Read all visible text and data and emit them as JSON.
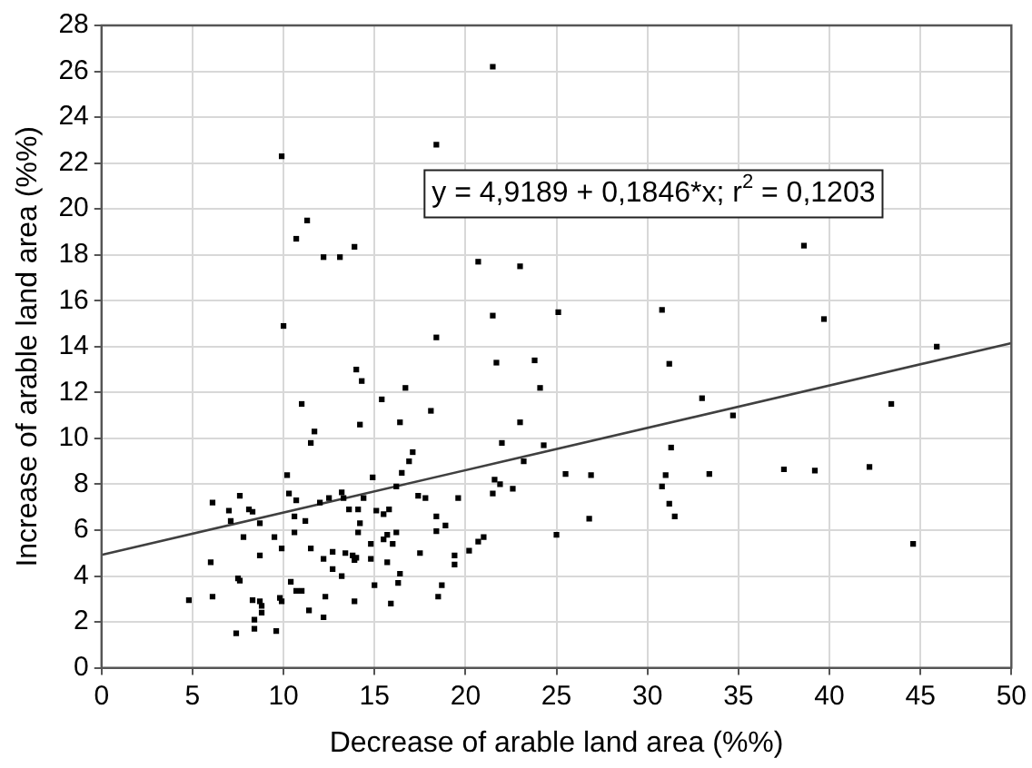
{
  "chart_data": {
    "type": "scatter",
    "xlabel": "Decrease of arable land area (%%)",
    "ylabel": "Increase of arable land area (%%)",
    "annotations": [
      "y = 4,9189 + 0,1846*x; r$^{2}$ = 0,1203"
    ],
    "xlim": [
      0,
      50
    ],
    "xticks": [
      0,
      5,
      10,
      15,
      20,
      25,
      30,
      35,
      40,
      45,
      50
    ],
    "ylim": [
      0,
      28
    ],
    "yticks": [
      0,
      2,
      4,
      6,
      8,
      10,
      12,
      14,
      16,
      18,
      20,
      22,
      24,
      26,
      28
    ],
    "grid": true,
    "marker": "square",
    "series": [
      {
        "color": "#000000",
        "x": [
          21.5,
          9.9,
          18.4,
          11.3,
          10.7,
          12.2,
          13.1,
          13.9,
          20.7,
          23.0,
          10.0,
          18.4,
          21.5,
          25.1,
          30.8,
          38.6,
          39.7,
          45.9,
          31.2,
          33.0,
          34.7,
          43.4,
          24.3,
          31.3,
          25.5,
          26.9,
          31.0,
          30.8,
          33.4,
          37.5,
          39.2,
          42.2,
          31.2,
          31.5,
          26.8,
          25.0,
          44.6,
          14.0,
          14.3,
          16.7,
          11.0,
          15.4,
          21.7,
          23.8,
          24.1,
          18.1,
          11.7,
          11.5,
          14.2,
          16.4,
          23.0,
          22.0,
          17.1,
          16.9,
          16.5,
          23.2,
          14.9,
          10.2,
          16.2,
          21.6,
          21.9,
          22.6,
          21.5,
          6.1,
          7.0,
          7.6,
          8.1,
          8.3,
          7.1,
          8.7,
          7.8,
          9.5,
          9.9,
          10.3,
          10.7,
          10.6,
          10.6,
          11.2,
          11.5,
          12.0,
          12.5,
          13.2,
          13.3,
          13.6,
          14.1,
          14.2,
          14.1,
          14.4,
          15.1,
          15.5,
          15.8,
          14.8,
          15.5,
          15.7,
          16.0,
          16.2,
          17.4,
          17.8,
          18.4,
          18.4,
          18.9,
          19.6,
          17.5,
          19.4,
          19.4,
          20.2,
          20.7,
          21.0,
          6.0,
          7.5,
          7.6,
          8.7,
          10.4,
          10.7,
          11.0,
          12.2,
          12.7,
          12.7,
          13.2,
          13.4,
          13.8,
          13.9,
          14.0,
          14.8,
          15.7,
          15.0,
          16.4,
          16.3,
          18.7,
          18.5,
          15.9,
          13.9,
          12.3,
          12.2,
          11.4,
          9.8,
          9.9,
          6.1,
          4.8,
          8.3,
          8.7,
          8.8,
          8.8,
          8.4,
          8.4,
          7.4,
          9.6
        ],
        "values": [
          26.2,
          22.3,
          22.8,
          19.5,
          18.7,
          17.9,
          17.9,
          18.35,
          17.7,
          17.5,
          14.9,
          14.4,
          15.35,
          15.5,
          15.6,
          18.4,
          15.2,
          14.0,
          13.25,
          11.75,
          11.0,
          11.5,
          9.7,
          9.6,
          8.45,
          8.4,
          8.4,
          7.9,
          8.45,
          8.65,
          8.6,
          8.75,
          7.15,
          6.6,
          6.5,
          5.8,
          5.4,
          13.0,
          12.5,
          12.2,
          11.5,
          11.7,
          13.3,
          13.4,
          12.2,
          11.2,
          10.3,
          9.8,
          10.6,
          10.7,
          10.7,
          9.8,
          9.4,
          9.0,
          8.5,
          9.0,
          8.3,
          8.4,
          7.9,
          8.2,
          8.0,
          7.8,
          7.6,
          7.2,
          6.85,
          7.5,
          6.9,
          6.8,
          6.4,
          6.3,
          5.7,
          5.7,
          5.2,
          7.6,
          7.3,
          6.6,
          5.9,
          6.4,
          5.2,
          7.2,
          7.4,
          7.65,
          7.4,
          6.9,
          6.9,
          6.3,
          5.9,
          7.4,
          6.85,
          6.7,
          6.9,
          5.4,
          5.6,
          5.8,
          5.4,
          5.9,
          7.5,
          7.4,
          6.6,
          5.95,
          6.2,
          7.4,
          5.0,
          4.9,
          4.5,
          5.1,
          5.5,
          5.7,
          4.6,
          3.9,
          3.8,
          4.9,
          3.75,
          3.35,
          3.35,
          4.75,
          5.05,
          4.3,
          4.0,
          5.0,
          4.9,
          4.7,
          4.8,
          4.75,
          4.6,
          3.6,
          4.1,
          3.7,
          3.6,
          3.1,
          2.8,
          2.9,
          3.1,
          2.2,
          2.5,
          3.05,
          2.9,
          3.1,
          2.95,
          2.95,
          2.9,
          2.7,
          2.4,
          2.1,
          1.7,
          1.5,
          1.6
        ]
      },
      {
        "type": "line",
        "color": "#404040",
        "marker": "none",
        "x": [
          0,
          50
        ],
        "values": [
          4.92,
          14.15
        ]
      }
    ]
  }
}
